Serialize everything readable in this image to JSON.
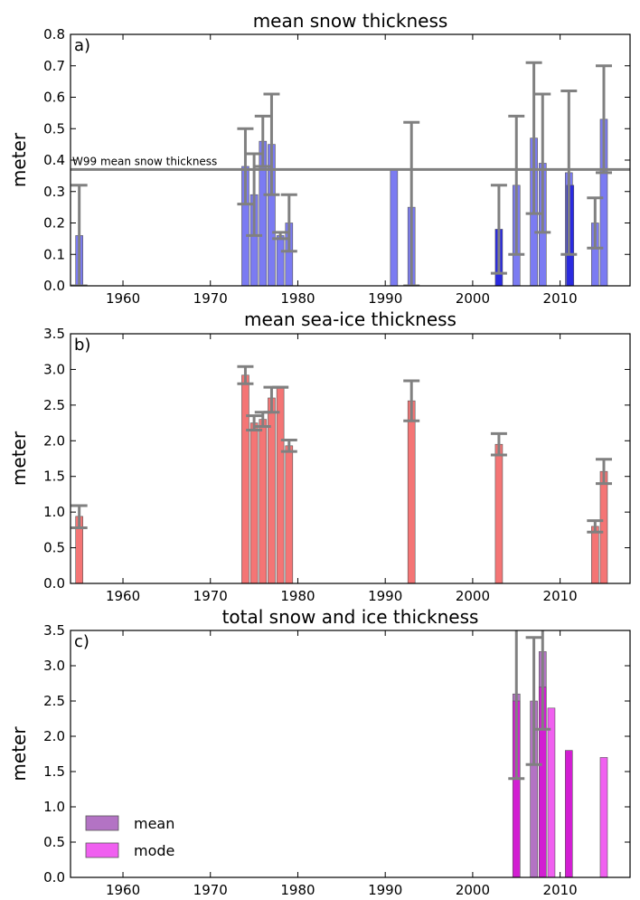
{
  "chart_data": [
    {
      "type": "bar",
      "title": "mean snow thickness",
      "panel_label": "a)",
      "xlabel": "",
      "ylabel": "meter",
      "xlim": [
        1954,
        2018
      ],
      "ylim": [
        0,
        0.8
      ],
      "xticks": [
        "1960",
        "1970",
        "1980",
        "1990",
        "2000",
        "2010"
      ],
      "yticks": [
        "0.0",
        "0.1",
        "0.2",
        "0.3",
        "0.4",
        "0.5",
        "0.6",
        "0.7",
        "0.8"
      ],
      "reference_line": {
        "label": "W99 mean snow thickness",
        "value": 0.37
      },
      "bar_color": "#7b7bf2",
      "bar_color_dark": "#2a2ae0",
      "bars": [
        {
          "x": 1955,
          "value": 0.16,
          "err_low": 0.0,
          "err_high": 0.32
        },
        {
          "x": 1974,
          "value": 0.38,
          "err_low": 0.26,
          "err_high": 0.5
        },
        {
          "x": 1975,
          "value": 0.29,
          "err_low": 0.16,
          "err_high": 0.42
        },
        {
          "x": 1976,
          "value": 0.46,
          "err_low": 0.38,
          "err_high": 0.54
        },
        {
          "x": 1977,
          "value": 0.45,
          "err_low": 0.29,
          "err_high": 0.61
        },
        {
          "x": 1978,
          "value": 0.16,
          "err_low": 0.15,
          "err_high": 0.17
        },
        {
          "x": 1979,
          "value": 0.2,
          "err_low": 0.11,
          "err_high": 0.29
        },
        {
          "x": 1991,
          "value": 0.37
        },
        {
          "x": 1993,
          "value": 0.25,
          "err_low": 0.0,
          "err_high": 0.52
        },
        {
          "x": 2003,
          "value": 0.18,
          "err_low": 0.04,
          "err_high": 0.32,
          "dark": true
        },
        {
          "x": 2005,
          "value": 0.32,
          "err_low": 0.1,
          "err_high": 0.54
        },
        {
          "x": 2007,
          "value": 0.47,
          "err_low": 0.23,
          "err_high": 0.71
        },
        {
          "x": 2008,
          "value": 0.39,
          "err_low": 0.17,
          "err_high": 0.61
        },
        {
          "x": 2011,
          "value": 0.36,
          "err_low": 0.1,
          "err_high": 0.62
        },
        {
          "x": 2011.15,
          "value": 0.32,
          "dark": true
        },
        {
          "x": 2014,
          "value": 0.2,
          "err_low": 0.12,
          "err_high": 0.28
        },
        {
          "x": 2015,
          "value": 0.53,
          "err_low": 0.36,
          "err_high": 0.7
        }
      ]
    },
    {
      "type": "bar",
      "title": "mean sea-ice thickness",
      "panel_label": "b)",
      "xlabel": "",
      "ylabel": "meter",
      "xlim": [
        1954,
        2018
      ],
      "ylim": [
        0,
        3.5
      ],
      "xticks": [
        "1960",
        "1970",
        "1980",
        "1990",
        "2000",
        "2010"
      ],
      "yticks": [
        "0.0",
        "0.5",
        "1.0",
        "1.5",
        "2.0",
        "2.5",
        "3.0",
        "3.5"
      ],
      "bar_color": "#f47575",
      "bars": [
        {
          "x": 1955,
          "value": 0.94,
          "err_low": 0.78,
          "err_high": 1.09
        },
        {
          "x": 1974,
          "value": 2.92,
          "err_low": 2.8,
          "err_high": 3.04
        },
        {
          "x": 1975,
          "value": 2.25,
          "err_low": 2.15,
          "err_high": 2.35
        },
        {
          "x": 1976,
          "value": 2.3,
          "err_low": 2.2,
          "err_high": 2.4
        },
        {
          "x": 1977,
          "value": 2.6,
          "err_low": 2.4,
          "err_high": 2.75
        },
        {
          "x": 1978,
          "value": 2.75,
          "err_low": 2.75,
          "err_high": 2.75
        },
        {
          "x": 1979,
          "value": 1.93,
          "err_low": 1.85,
          "err_high": 2.01
        },
        {
          "x": 1993,
          "value": 2.56,
          "err_low": 2.28,
          "err_high": 2.84
        },
        {
          "x": 2003,
          "value": 1.95,
          "err_low": 1.8,
          "err_high": 2.1
        },
        {
          "x": 2014,
          "value": 0.8,
          "err_low": 0.72,
          "err_high": 0.88
        },
        {
          "x": 2015,
          "value": 1.57,
          "err_low": 1.4,
          "err_high": 1.74
        }
      ]
    },
    {
      "type": "bar",
      "title": "total snow and ice thickness",
      "panel_label": "c)",
      "xlabel": "",
      "ylabel": "meter",
      "xlim": [
        1954,
        2018
      ],
      "ylim": [
        0,
        3.5
      ],
      "xticks": [
        "1960",
        "1970",
        "1980",
        "1990",
        "2000",
        "2010"
      ],
      "yticks": [
        "0.0",
        "0.5",
        "1.0",
        "1.5",
        "2.0",
        "2.5",
        "3.0",
        "3.5"
      ],
      "legend": {
        "placement": "lower-left",
        "entries": [
          "mean",
          "mode"
        ]
      },
      "series": [
        {
          "name": "mean",
          "color": "#b373c4",
          "bars": [
            {
              "x": 2005,
              "value": 2.6,
              "err_low": 1.4,
              "err_high": 3.6
            },
            {
              "x": 2007,
              "value": 2.5,
              "err_low": 1.6,
              "err_high": 3.4
            },
            {
              "x": 2008,
              "value": 3.2,
              "err_low": 2.1,
              "err_high": 3.6
            }
          ]
        },
        {
          "name": "mode",
          "color": "#f060f0",
          "dark_color": "#d21ed2",
          "bars": [
            {
              "x": 2005,
              "value": 2.5,
              "dark": true
            },
            {
              "x": 2008,
              "value": 2.7,
              "dark": true
            },
            {
              "x": 2009,
              "value": 2.4
            },
            {
              "x": 2011,
              "value": 1.8,
              "dark": true
            },
            {
              "x": 2015,
              "value": 1.7
            }
          ]
        }
      ]
    }
  ]
}
